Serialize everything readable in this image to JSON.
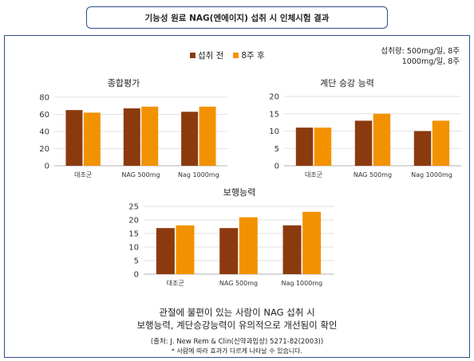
{
  "header": {
    "title": "기능성 원료 NAG(엔에이지) 섭취 시 인체시험 결과"
  },
  "legend": {
    "before": "섭취 전",
    "after": "8주 후"
  },
  "dose_note": {
    "line1": "섭취량: 500mg/일, 8주",
    "line2": "1000mg/일, 8주"
  },
  "colors": {
    "before": "#8b3a0f",
    "after": "#f39200",
    "frame": "#2f4e8c"
  },
  "chart_data": [
    {
      "type": "bar",
      "title": "종합평가",
      "categories": [
        "대조군",
        "NAG 500mg",
        "Nag 1000mg"
      ],
      "series": [
        {
          "name": "섭취 전",
          "values": [
            65,
            67,
            63
          ]
        },
        {
          "name": "8주 후",
          "values": [
            62,
            69,
            69
          ]
        }
      ],
      "ylim": [
        0,
        80
      ],
      "yticks": [
        0,
        20,
        40,
        60,
        80
      ],
      "grid": true
    },
    {
      "type": "bar",
      "title": "계단 승강 능력",
      "categories": [
        "대조군",
        "NAG 500mg",
        "Nag 1000mg"
      ],
      "series": [
        {
          "name": "섭취 전",
          "values": [
            11,
            13,
            10
          ]
        },
        {
          "name": "8주 후",
          "values": [
            11,
            15,
            13
          ]
        }
      ],
      "ylim": [
        0,
        20
      ],
      "yticks": [
        0,
        5,
        10,
        15,
        20
      ],
      "grid": true
    },
    {
      "type": "bar",
      "title": "보행능력",
      "categories": [
        "대조군",
        "NAG 500mg",
        "Nag 1000mg"
      ],
      "series": [
        {
          "name": "섭취 전",
          "values": [
            17,
            17,
            18
          ]
        },
        {
          "name": "8주 후",
          "values": [
            18,
            21,
            23
          ]
        }
      ],
      "ylim": [
        0,
        25
      ],
      "yticks": [
        0,
        5,
        10,
        15,
        20,
        25
      ],
      "grid": true
    }
  ],
  "summary": {
    "line1": "관절에 불편이 있는 사람이 NAG 섭취 시",
    "line2": "보행능력, 계단승강능력이 유의적으로 개선됨이 확인"
  },
  "source": "(출처: J. New Rem & Clin(신약과임상) 5271-82(2003))",
  "note": "* 사람에 따라 효과가 다르게 나타날 수 있습니다."
}
